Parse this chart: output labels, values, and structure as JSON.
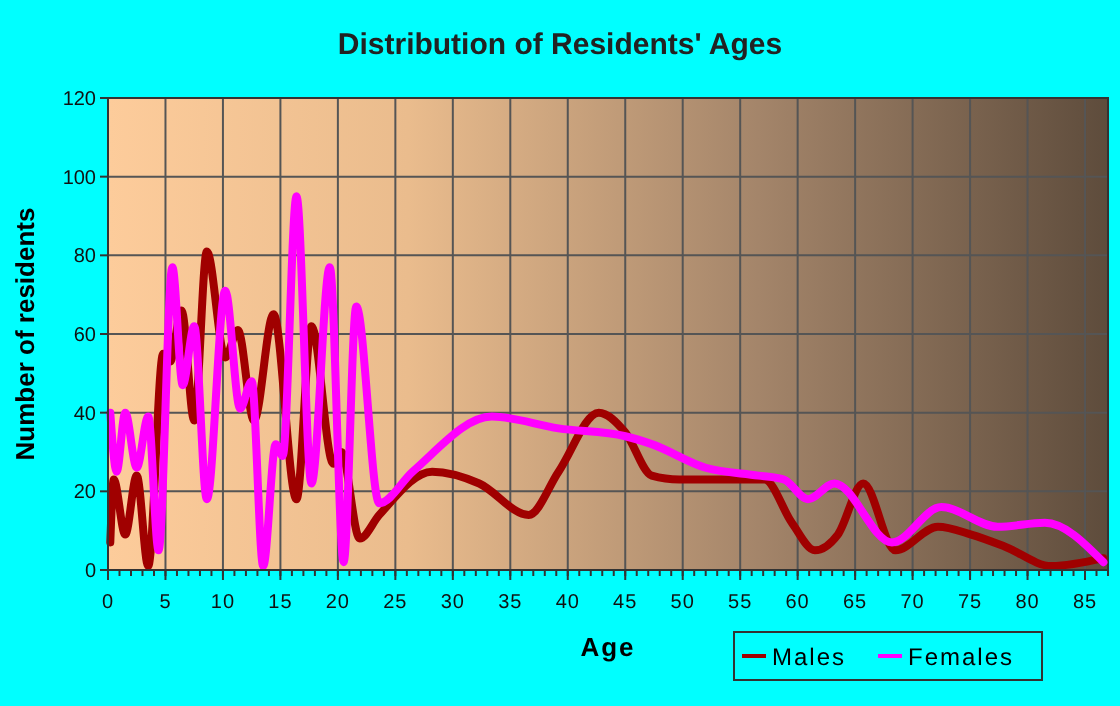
{
  "chart_data": {
    "type": "line",
    "title": "Distribution of Residents' Ages",
    "xlabel": "Age",
    "ylabel": "Number of residents",
    "xlim": [
      0,
      87
    ],
    "xticks": [
      0,
      5,
      10,
      15,
      20,
      25,
      30,
      35,
      40,
      45,
      50,
      55,
      60,
      65,
      70,
      75,
      80,
      85
    ],
    "ylim": [
      0,
      120
    ],
    "yticks": [
      0,
      20,
      40,
      60,
      80,
      100,
      120
    ],
    "grid": true,
    "legend": "bottom right",
    "series": [
      {
        "name": "Males",
        "color": "#a00000",
        "x": [
          0.2,
          0.5,
          1.5,
          2.5,
          3.5,
          4.8,
          5.4,
          6.4,
          7.5,
          8.6,
          10.2,
          11.3,
          12.7,
          14.4,
          16.4,
          17.7,
          19.6,
          20.3,
          21.9,
          23.6,
          28.2,
          32.3,
          36.6,
          39.2,
          42.7,
          45,
          47.3,
          49.7,
          53.1,
          57.1,
          59.5,
          61.5,
          63.5,
          65.7,
          68.5,
          72.2,
          75.1,
          78,
          82.1,
          86.6
        ],
        "values": [
          7,
          23,
          9,
          24,
          1,
          55,
          53,
          66,
          38,
          81,
          54,
          61,
          38,
          65,
          18,
          62,
          27,
          30,
          8,
          14,
          25,
          22,
          14,
          25,
          40,
          35,
          24,
          23,
          23,
          23,
          12,
          5,
          9,
          22,
          5,
          11,
          9,
          6,
          1,
          3
        ]
      },
      {
        "name": "Females",
        "color": "#ff00ff",
        "x": [
          0.2,
          0.75,
          1.5,
          2.5,
          3.5,
          4.4,
          5.6,
          6.5,
          7.5,
          8.6,
          10.2,
          11.5,
          12.5,
          13.5,
          14.6,
          15.2,
          16.4,
          17.7,
          19.3,
          20.5,
          21.6,
          23.6,
          26.5,
          33.4,
          39.2,
          45,
          47.3,
          52,
          56.6,
          58.8,
          60.9,
          63.2,
          68.2,
          72.5,
          77.4,
          81.5,
          86.6
        ],
        "values": [
          40,
          25,
          40,
          26,
          39,
          5,
          77,
          47,
          62,
          18,
          71,
          41,
          48,
          1,
          32,
          29,
          95,
          22,
          77,
          2,
          67,
          17,
          25,
          39,
          36,
          34,
          32,
          26,
          24,
          23,
          18,
          22,
          7,
          16,
          11,
          12,
          2
        ]
      }
    ]
  }
}
